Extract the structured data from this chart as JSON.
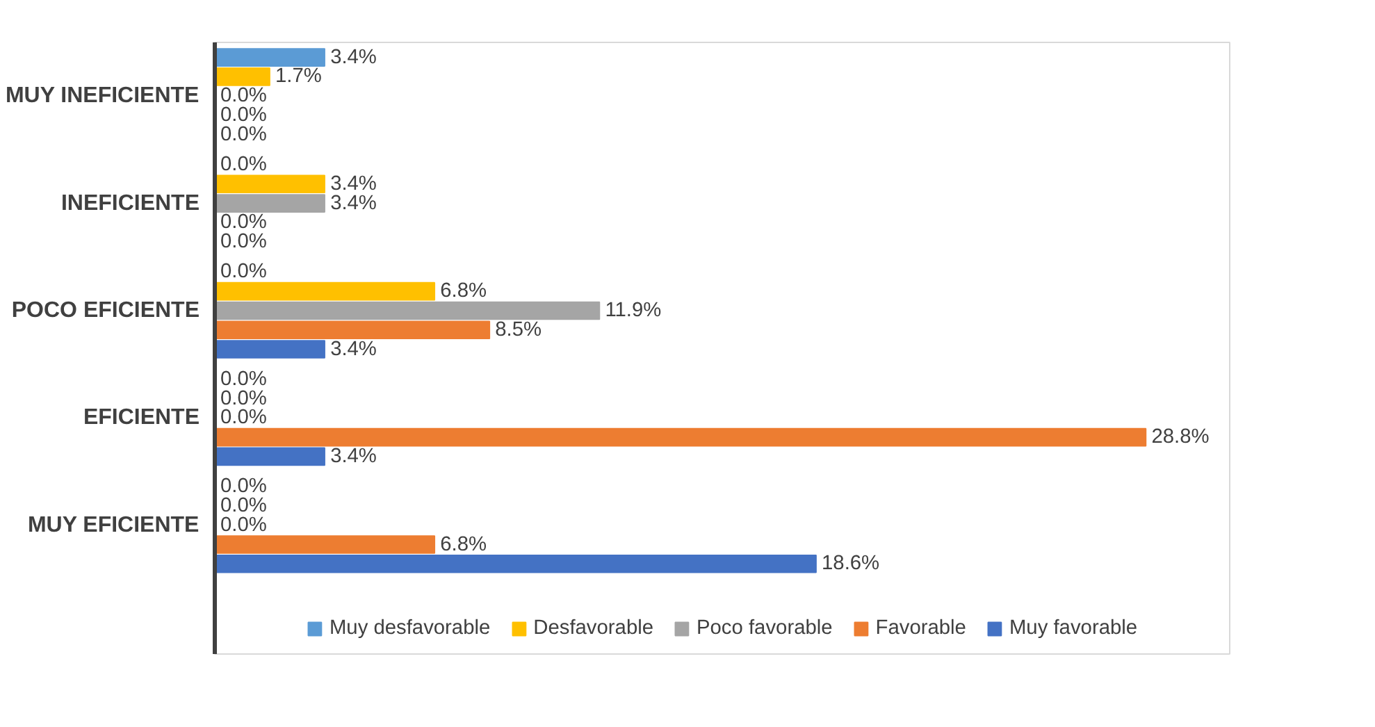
{
  "chart_data": {
    "type": "bar",
    "orientation": "horizontal",
    "categories": [
      "MUY INEFICIENTE",
      "INEFICIENTE",
      "POCO EFICIENTE",
      "EFICIENTE",
      "MUY EFICIENTE"
    ],
    "series": [
      {
        "name": "Muy desfavorable",
        "color": "#5b9bd5",
        "values": [
          3.4,
          0.0,
          0.0,
          0.0,
          0.0
        ],
        "value_labels": [
          "3.4%",
          "0.0%",
          "0.0%",
          "0.0%",
          "0.0%"
        ]
      },
      {
        "name": "Desfavorable",
        "color": "#ffc000",
        "values": [
          1.7,
          3.4,
          6.8,
          0.0,
          0.0
        ],
        "value_labels": [
          "1.7%",
          "3.4%",
          "6.8%",
          "0.0%",
          "0.0%"
        ]
      },
      {
        "name": "Poco favorable",
        "color": "#a5a5a5",
        "values": [
          0.0,
          3.4,
          11.9,
          0.0,
          0.0
        ],
        "value_labels": [
          "0.0%",
          "3.4%",
          "11.9%",
          "0.0%",
          "0.0%"
        ]
      },
      {
        "name": "Favorable",
        "color": "#ed7d31",
        "values": [
          0.0,
          0.0,
          8.5,
          28.8,
          6.8
        ],
        "value_labels": [
          "0.0%",
          "0.0%",
          "8.5%",
          "28.8%",
          "6.8%"
        ]
      },
      {
        "name": "Muy favorable",
        "color": "#4472c4",
        "values": [
          0.0,
          0.0,
          3.4,
          3.4,
          18.6
        ],
        "value_labels": [
          "0.0%",
          "0.0%",
          "3.4%",
          "3.4%",
          "18.6%"
        ]
      }
    ],
    "legend": "bottom"
  }
}
